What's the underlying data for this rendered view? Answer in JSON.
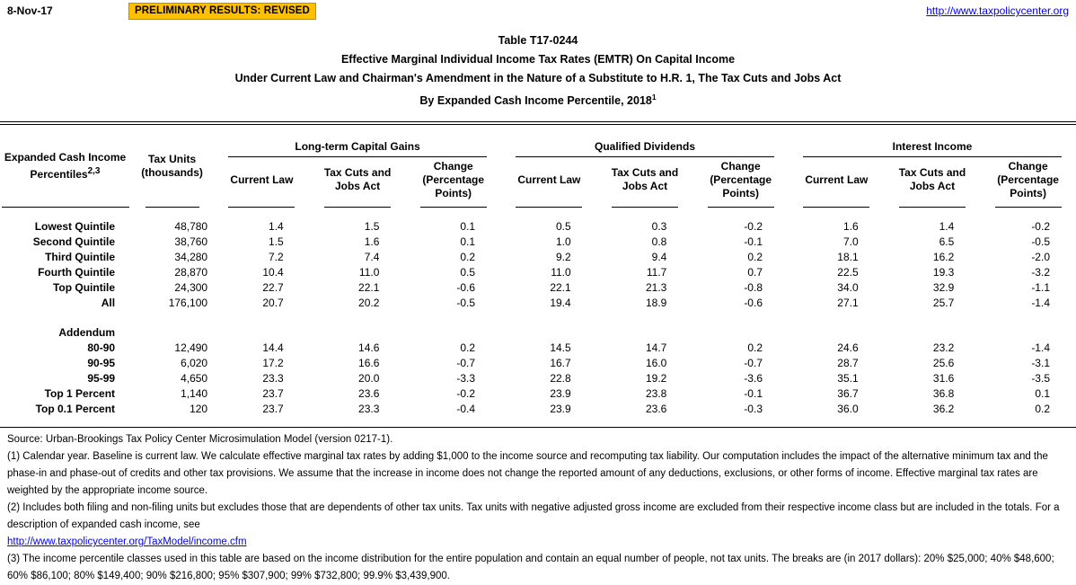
{
  "header": {
    "date": "8-Nov-17",
    "banner": "PRELIMINARY RESULTS: REVISED",
    "site_link": "http://www.taxpolicycenter.org"
  },
  "title": {
    "line1": "Table T17-0244",
    "line2": "Effective Marginal Individual Income Tax Rates (EMTR) On Capital Income",
    "line3": "Under Current Law and Chairman's Amendment in the Nature of a Substitute to H.R. 1, The Tax Cuts and Jobs Act",
    "line4": "By Expanded Cash Income Percentile, 2018",
    "line4_superscript": "1"
  },
  "colors": {
    "banner_bg": "#FFC000",
    "link_blue": "#0000EE",
    "text": "#000000"
  },
  "table": {
    "row_header": {
      "line1": "Expanded Cash Income",
      "line2": "Percentiles",
      "superscript": "2,3"
    },
    "units_header": {
      "line1": "Tax Units",
      "line2": "(thousands)"
    },
    "groups": [
      {
        "label": "Long-term Capital Gains"
      },
      {
        "label": "Qualified Dividends"
      },
      {
        "label": "Interest Income"
      }
    ],
    "columns": [
      "Current Law",
      "Tax Cuts and Jobs Act",
      "Change (Percentage Points)"
    ],
    "rows": [
      {
        "label": "Lowest Quintile",
        "tax_units": "48,780",
        "values": [
          "1.4",
          "1.5",
          "0.1",
          "0.5",
          "0.3",
          "-0.2",
          "1.6",
          "1.4",
          "-0.2"
        ]
      },
      {
        "label": "Second Quintile",
        "tax_units": "38,760",
        "values": [
          "1.5",
          "1.6",
          "0.1",
          "1.0",
          "0.8",
          "-0.1",
          "7.0",
          "6.5",
          "-0.5"
        ]
      },
      {
        "label": "Third Quintile",
        "tax_units": "34,280",
        "values": [
          "7.2",
          "7.4",
          "0.2",
          "9.2",
          "9.4",
          "0.2",
          "18.1",
          "16.2",
          "-2.0"
        ]
      },
      {
        "label": "Fourth Quintile",
        "tax_units": "28,870",
        "values": [
          "10.4",
          "11.0",
          "0.5",
          "11.0",
          "11.7",
          "0.7",
          "22.5",
          "19.3",
          "-3.2"
        ]
      },
      {
        "label": "Top Quintile",
        "tax_units": "24,300",
        "values": [
          "22.7",
          "22.1",
          "-0.6",
          "22.1",
          "21.3",
          "-0.8",
          "34.0",
          "32.9",
          "-1.1"
        ]
      },
      {
        "label": "All",
        "tax_units": "176,100",
        "values": [
          "20.7",
          "20.2",
          "-0.5",
          "19.4",
          "18.9",
          "-0.6",
          "27.1",
          "25.7",
          "-1.4"
        ]
      }
    ],
    "addendum_label": "Addendum",
    "addendum_rows": [
      {
        "label": "80-90",
        "tax_units": "12,490",
        "values": [
          "14.4",
          "14.6",
          "0.2",
          "14.5",
          "14.7",
          "0.2",
          "24.6",
          "23.2",
          "-1.4"
        ]
      },
      {
        "label": "90-95",
        "tax_units": "6,020",
        "values": [
          "17.2",
          "16.6",
          "-0.7",
          "16.7",
          "16.0",
          "-0.7",
          "28.7",
          "25.6",
          "-3.1"
        ]
      },
      {
        "label": "95-99",
        "tax_units": "4,650",
        "values": [
          "23.3",
          "20.0",
          "-3.3",
          "22.8",
          "19.2",
          "-3.6",
          "35.1",
          "31.6",
          "-3.5"
        ]
      },
      {
        "label": "Top 1 Percent",
        "tax_units": "1,140",
        "values": [
          "23.7",
          "23.6",
          "-0.2",
          "23.9",
          "23.8",
          "-0.1",
          "36.7",
          "36.8",
          "0.1"
        ]
      },
      {
        "label": "Top 0.1 Percent",
        "tax_units": "120",
        "values": [
          "23.7",
          "23.3",
          "-0.4",
          "23.9",
          "23.6",
          "-0.3",
          "36.0",
          "36.2",
          "0.2"
        ]
      }
    ]
  },
  "footer": {
    "source": "Source: Urban-Brookings Tax Policy Center Microsimulation Model (version 0217-1).",
    "note1": "(1) Calendar year. Baseline is current law. We calculate effective marginal tax rates by adding $1,000 to the income source and recomputing tax liability. Our computation includes the impact of the alternative minimum tax and the phase-in and phase-out of credits and other tax provisions. We assume that the increase in income does not change the reported amount of any deductions, exclusions, or other forms of income. Effective marginal tax rates are weighted by the appropriate income source.",
    "note2": "(2) Includes both filing and non-filing units but excludes those that are dependents of other tax units. Tax units with negative adjusted gross income are excluded from their respective income class but are included in the totals. For a description of expanded cash income, see",
    "note2_link": "http://www.taxpolicycenter.org/TaxModel/income.cfm",
    "note3": "(3) The income percentile classes used in this table are based on the income distribution for the entire population and contain an equal number of people, not tax units. The breaks are (in 2017 dollars): 20% $25,000; 40% $48,600; 60% $86,100; 80% $149,400; 90% $216,800; 95% $307,900; 99% $732,800; 99.9% $3,439,900."
  }
}
